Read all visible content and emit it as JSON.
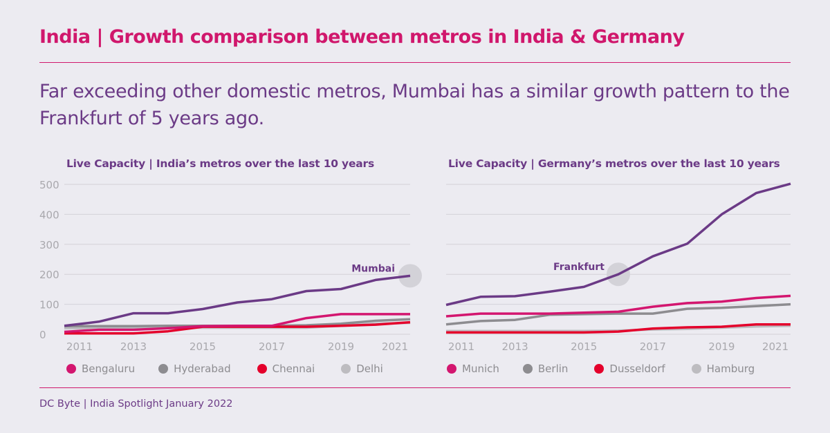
{
  "title": "India | Growth comparison between metros in India & Germany",
  "subtitle": "Far exceeding other domestic metros, Mumbai has a similar growth pattern to the Frankfurt of 5 years ago.",
  "footer": "DC Byte | India Spotlight January 2022",
  "colors": {
    "accent": "#d0176c",
    "purple": "#6b3a86",
    "magenta": "#d3166f",
    "gray": "#8d8c90",
    "red": "#e4002b",
    "lightgray": "#bdbcc0"
  },
  "chart_data": [
    {
      "type": "line",
      "title": "Live Capacity | India’s metros over the last 10 years",
      "x": [
        2011,
        2012,
        2013,
        2014,
        2015,
        2016,
        2017,
        2018,
        2019,
        2020,
        2021
      ],
      "xticks": [
        "2011",
        "2013",
        "2015",
        "2017",
        "2019",
        "2021"
      ],
      "yticks": [
        "0",
        "100",
        "200",
        "300",
        "400",
        "500"
      ],
      "ylim": [
        0,
        500
      ],
      "grid": true,
      "annotation": "Mumbai",
      "series": [
        {
          "name": "Delhi",
          "color": "#bdbcc0",
          "legend": true,
          "values": [
            20,
            20,
            20,
            22,
            22,
            22,
            22,
            22,
            28,
            35,
            38
          ]
        },
        {
          "name": "Hyderabad",
          "color": "#8d8c90",
          "legend": true,
          "values": [
            27,
            27,
            27,
            28,
            28,
            28,
            28,
            30,
            35,
            45,
            50
          ]
        },
        {
          "name": "Chennai",
          "color": "#e4002b",
          "legend": true,
          "values": [
            3,
            3,
            3,
            10,
            25,
            25,
            25,
            25,
            28,
            32,
            40
          ]
        },
        {
          "name": "Bengaluru",
          "color": "#d3166f",
          "legend": true,
          "values": [
            8,
            15,
            15,
            20,
            27,
            28,
            28,
            54,
            67,
            67,
            67
          ]
        },
        {
          "name": "Mumbai",
          "color": "#6b3a86",
          "legend": false,
          "values": [
            28,
            42,
            70,
            70,
            84,
            106,
            117,
            144,
            151,
            181,
            195
          ]
        }
      ],
      "legend_order": [
        "Bengaluru",
        "Hyderabad",
        "Chennai",
        "Delhi"
      ]
    },
    {
      "type": "line",
      "title": "Live Capacity | Germany’s metros over the last 10 years",
      "x": [
        2011,
        2012,
        2013,
        2014,
        2015,
        2016,
        2017,
        2018,
        2019,
        2020,
        2021
      ],
      "xticks": [
        "2011",
        "2013",
        "2015",
        "2017",
        "2019",
        "2021"
      ],
      "ylim": [
        0,
        500
      ],
      "grid": true,
      "annotation": "Frankfurt",
      "series": [
        {
          "name": "Hamburg",
          "color": "#bdbcc0",
          "legend": true,
          "values": [
            11,
            11,
            11,
            11,
            11,
            12,
            16,
            18,
            22,
            26,
            28
          ]
        },
        {
          "name": "Berlin",
          "color": "#8d8c90",
          "legend": true,
          "values": [
            33,
            44,
            48,
            65,
            67,
            69,
            69,
            85,
            88,
            94,
            100
          ]
        },
        {
          "name": "Dusseldorf",
          "color": "#e4002b",
          "legend": true,
          "values": [
            6,
            6,
            6,
            6,
            6,
            9,
            19,
            23,
            25,
            33,
            33
          ]
        },
        {
          "name": "Munich",
          "color": "#d3166f",
          "legend": true,
          "values": [
            60,
            69,
            69,
            69,
            72,
            75,
            92,
            104,
            109,
            121,
            128
          ]
        },
        {
          "name": "Frankfurt",
          "color": "#6b3a86",
          "legend": false,
          "values": [
            98,
            125,
            127,
            142,
            158,
            200,
            260,
            302,
            400,
            471,
            502
          ]
        }
      ],
      "legend_order": [
        "Munich",
        "Berlin",
        "Dusseldorf",
        "Hamburg"
      ]
    }
  ]
}
